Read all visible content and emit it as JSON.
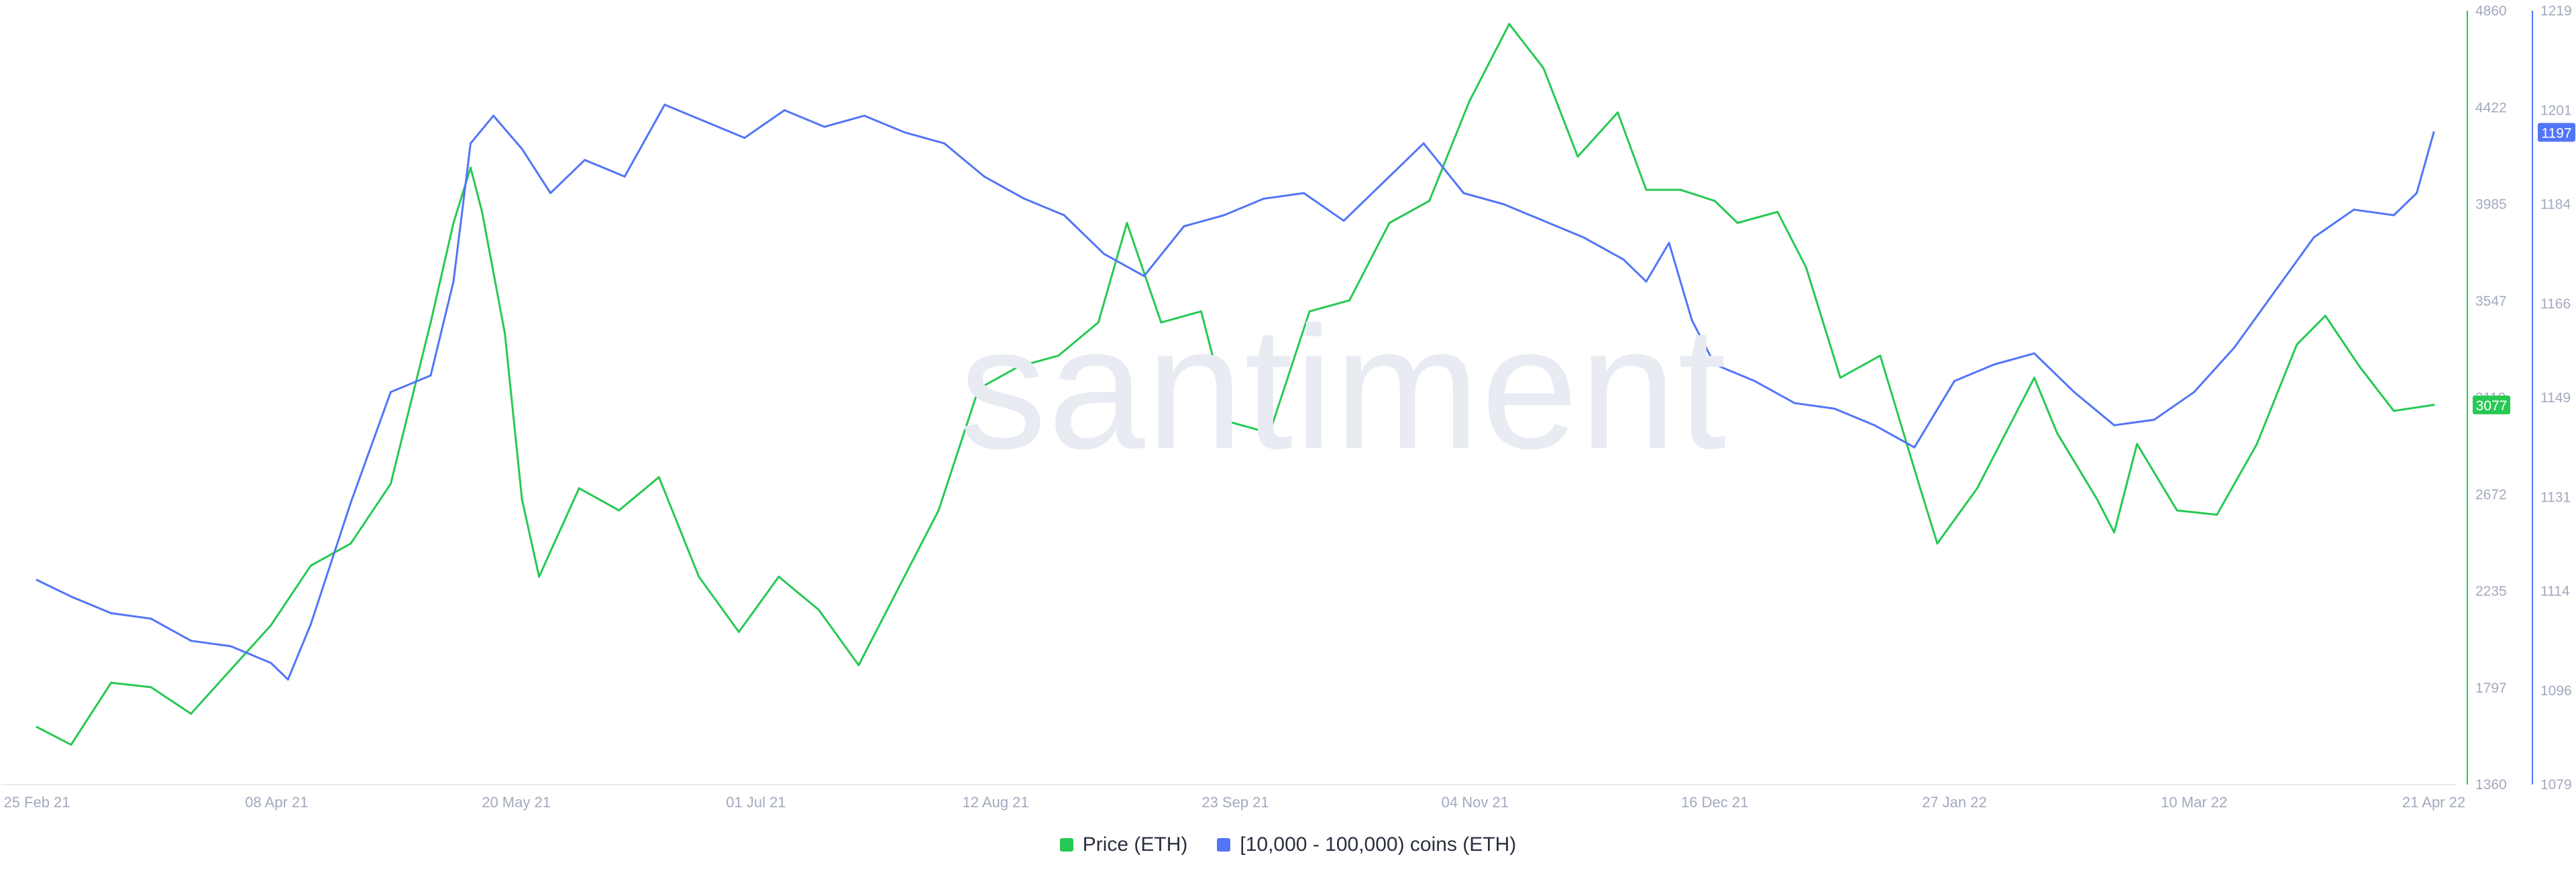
{
  "watermark": "santiment",
  "colors": {
    "price": "#26c953",
    "holders": "#5275f7",
    "axis_text": "#a3a9bd",
    "grid": "#e8ebf2"
  },
  "legend": [
    {
      "label": "Price (ETH)",
      "color": "#26c953"
    },
    {
      "label": "[10,000 - 100,000) coins (ETH)",
      "color": "#5275f7"
    }
  ],
  "chart_data": {
    "type": "line",
    "title": "",
    "x_tick_labels": [
      "25 Feb 21",
      "08 Apr 21",
      "20 May 21",
      "01 Jul 21",
      "12 Aug 21",
      "23 Sep 21",
      "04 Nov 21",
      "16 Dec 21",
      "27 Jan 22",
      "10 Mar 22",
      "21 Apr 22"
    ],
    "x_start": "2021-02-25",
    "x_end": "2022-04-21",
    "price_axis": {
      "ticks": [
        4860,
        4422,
        3985,
        3547,
        3110,
        2672,
        2235,
        1797,
        1360
      ],
      "ylim": [
        1360,
        4860
      ],
      "current_label": "3077"
    },
    "holders_axis": {
      "ticks": [
        1219,
        1201,
        1184,
        1166,
        1149,
        1131,
        1114,
        1096,
        1079
      ],
      "ylim": [
        1079,
        1219
      ],
      "current_label": "1197"
    },
    "series": [
      {
        "name": "Price (ETH)",
        "axis": "price",
        "points": [
          [
            "2021-02-25",
            1620
          ],
          [
            "2021-03-03",
            1540
          ],
          [
            "2021-03-10",
            1820
          ],
          [
            "2021-03-17",
            1800
          ],
          [
            "2021-03-24",
            1680
          ],
          [
            "2021-03-31",
            1880
          ],
          [
            "2021-04-07",
            2080
          ],
          [
            "2021-04-14",
            2350
          ],
          [
            "2021-04-21",
            2450
          ],
          [
            "2021-04-28",
            2720
          ],
          [
            "2021-05-05",
            3450
          ],
          [
            "2021-05-09",
            3900
          ],
          [
            "2021-05-12",
            4150
          ],
          [
            "2021-05-14",
            3950
          ],
          [
            "2021-05-18",
            3400
          ],
          [
            "2021-05-21",
            2650
          ],
          [
            "2021-05-24",
            2300
          ],
          [
            "2021-05-31",
            2700
          ],
          [
            "2021-06-07",
            2600
          ],
          [
            "2021-06-14",
            2750
          ],
          [
            "2021-06-21",
            2300
          ],
          [
            "2021-06-28",
            2050
          ],
          [
            "2021-07-05",
            2300
          ],
          [
            "2021-07-12",
            2150
          ],
          [
            "2021-07-19",
            1900
          ],
          [
            "2021-07-26",
            2250
          ],
          [
            "2021-08-02",
            2600
          ],
          [
            "2021-08-09",
            3150
          ],
          [
            "2021-08-16",
            3250
          ],
          [
            "2021-08-23",
            3300
          ],
          [
            "2021-08-30",
            3450
          ],
          [
            "2021-09-04",
            3900
          ],
          [
            "2021-09-10",
            3450
          ],
          [
            "2021-09-17",
            3500
          ],
          [
            "2021-09-22",
            3000
          ],
          [
            "2021-09-29",
            2950
          ],
          [
            "2021-10-06",
            3500
          ],
          [
            "2021-10-13",
            3550
          ],
          [
            "2021-10-20",
            3900
          ],
          [
            "2021-10-27",
            4000
          ],
          [
            "2021-11-03",
            4450
          ],
          [
            "2021-11-10",
            4800
          ],
          [
            "2021-11-16",
            4600
          ],
          [
            "2021-11-22",
            4200
          ],
          [
            "2021-11-29",
            4400
          ],
          [
            "2021-12-04",
            4050
          ],
          [
            "2021-12-10",
            4050
          ],
          [
            "2021-12-16",
            4000
          ],
          [
            "2021-12-20",
            3900
          ],
          [
            "2021-12-27",
            3950
          ],
          [
            "2022-01-01",
            3700
          ],
          [
            "2022-01-07",
            3200
          ],
          [
            "2022-01-14",
            3300
          ],
          [
            "2022-01-21",
            2700
          ],
          [
            "2022-01-24",
            2450
          ],
          [
            "2022-01-31",
            2700
          ],
          [
            "2022-02-07",
            3050
          ],
          [
            "2022-02-10",
            3200
          ],
          [
            "2022-02-14",
            2950
          ],
          [
            "2022-02-21",
            2650
          ],
          [
            "2022-02-24",
            2500
          ],
          [
            "2022-02-28",
            2900
          ],
          [
            "2022-03-07",
            2600
          ],
          [
            "2022-03-14",
            2580
          ],
          [
            "2022-03-21",
            2900
          ],
          [
            "2022-03-28",
            3350
          ],
          [
            "2022-04-02",
            3480
          ],
          [
            "2022-04-08",
            3250
          ],
          [
            "2022-04-14",
            3050
          ],
          [
            "2022-04-21",
            3077
          ]
        ]
      },
      {
        "name": "[10,000 - 100,000) coins (ETH)",
        "axis": "holders",
        "points": [
          [
            "2021-02-25",
            1116
          ],
          [
            "2021-03-03",
            1113
          ],
          [
            "2021-03-10",
            1110
          ],
          [
            "2021-03-17",
            1109
          ],
          [
            "2021-03-24",
            1105
          ],
          [
            "2021-03-31",
            1104
          ],
          [
            "2021-04-07",
            1101
          ],
          [
            "2021-04-10",
            1098
          ],
          [
            "2021-04-14",
            1108
          ],
          [
            "2021-04-21",
            1130
          ],
          [
            "2021-04-28",
            1150
          ],
          [
            "2021-05-05",
            1153
          ],
          [
            "2021-05-09",
            1170
          ],
          [
            "2021-05-12",
            1195
          ],
          [
            "2021-05-16",
            1200
          ],
          [
            "2021-05-21",
            1194
          ],
          [
            "2021-05-26",
            1186
          ],
          [
            "2021-06-01",
            1192
          ],
          [
            "2021-06-08",
            1189
          ],
          [
            "2021-06-15",
            1202
          ],
          [
            "2021-06-22",
            1199
          ],
          [
            "2021-06-29",
            1196
          ],
          [
            "2021-07-06",
            1201
          ],
          [
            "2021-07-13",
            1198
          ],
          [
            "2021-07-20",
            1200
          ],
          [
            "2021-07-27",
            1197
          ],
          [
            "2021-08-03",
            1195
          ],
          [
            "2021-08-10",
            1189
          ],
          [
            "2021-08-17",
            1185
          ],
          [
            "2021-08-24",
            1182
          ],
          [
            "2021-08-31",
            1175
          ],
          [
            "2021-09-07",
            1171
          ],
          [
            "2021-09-14",
            1180
          ],
          [
            "2021-09-21",
            1182
          ],
          [
            "2021-09-28",
            1185
          ],
          [
            "2021-10-05",
            1186
          ],
          [
            "2021-10-12",
            1181
          ],
          [
            "2021-10-19",
            1188
          ],
          [
            "2021-10-26",
            1195
          ],
          [
            "2021-11-02",
            1186
          ],
          [
            "2021-11-09",
            1184
          ],
          [
            "2021-11-16",
            1181
          ],
          [
            "2021-11-23",
            1178
          ],
          [
            "2021-11-30",
            1174
          ],
          [
            "2021-12-04",
            1170
          ],
          [
            "2021-12-08",
            1177
          ],
          [
            "2021-12-12",
            1163
          ],
          [
            "2021-12-16",
            1155
          ],
          [
            "2021-12-23",
            1152
          ],
          [
            "2021-12-30",
            1148
          ],
          [
            "2022-01-06",
            1147
          ],
          [
            "2022-01-13",
            1144
          ],
          [
            "2022-01-20",
            1140
          ],
          [
            "2022-01-27",
            1152
          ],
          [
            "2022-02-03",
            1155
          ],
          [
            "2022-02-10",
            1157
          ],
          [
            "2022-02-17",
            1150
          ],
          [
            "2022-02-24",
            1144
          ],
          [
            "2022-03-03",
            1145
          ],
          [
            "2022-03-10",
            1150
          ],
          [
            "2022-03-17",
            1158
          ],
          [
            "2022-03-24",
            1168
          ],
          [
            "2022-03-31",
            1178
          ],
          [
            "2022-04-07",
            1183
          ],
          [
            "2022-04-14",
            1182
          ],
          [
            "2022-04-18",
            1186
          ],
          [
            "2022-04-21",
            1197
          ]
        ]
      }
    ]
  }
}
